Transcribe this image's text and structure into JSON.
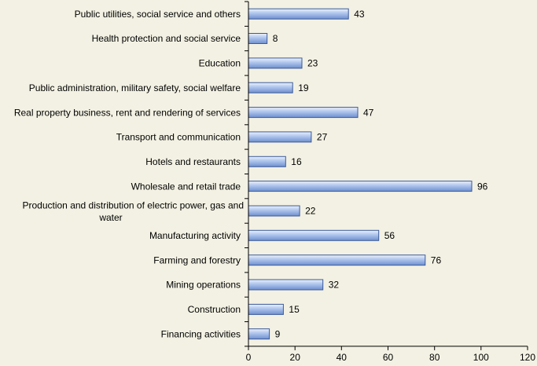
{
  "chart_data": {
    "type": "bar",
    "orientation": "horizontal",
    "title": "",
    "xlabel": "",
    "ylabel": "",
    "xlim": [
      0,
      120
    ],
    "xticks": [
      0,
      20,
      40,
      60,
      80,
      100,
      120
    ],
    "grid": false,
    "categories": [
      "Public utilities, social service and others",
      "Health protection and social service",
      "Education",
      "Public administration, military safety, social welfare",
      "Real property business, rent and rendering of services",
      "Transport and communication",
      "Hotels and restaurants",
      "Wholesale and retail trade",
      "Production and distribution of electric power, gas and water",
      "Manufacturing activity",
      "Farming and forestry",
      "Mining operations",
      "Construction",
      "Financing activities"
    ],
    "values": [
      43,
      8,
      23,
      19,
      47,
      27,
      16,
      96,
      22,
      56,
      76,
      32,
      15,
      9
    ]
  },
  "colors": {
    "background": "#f3f1e3",
    "bar_fill_light": "#d6e3f7",
    "bar_fill_dark": "#6e8fcf",
    "bar_stroke": "#3b5a9a",
    "axis": "#000000"
  }
}
